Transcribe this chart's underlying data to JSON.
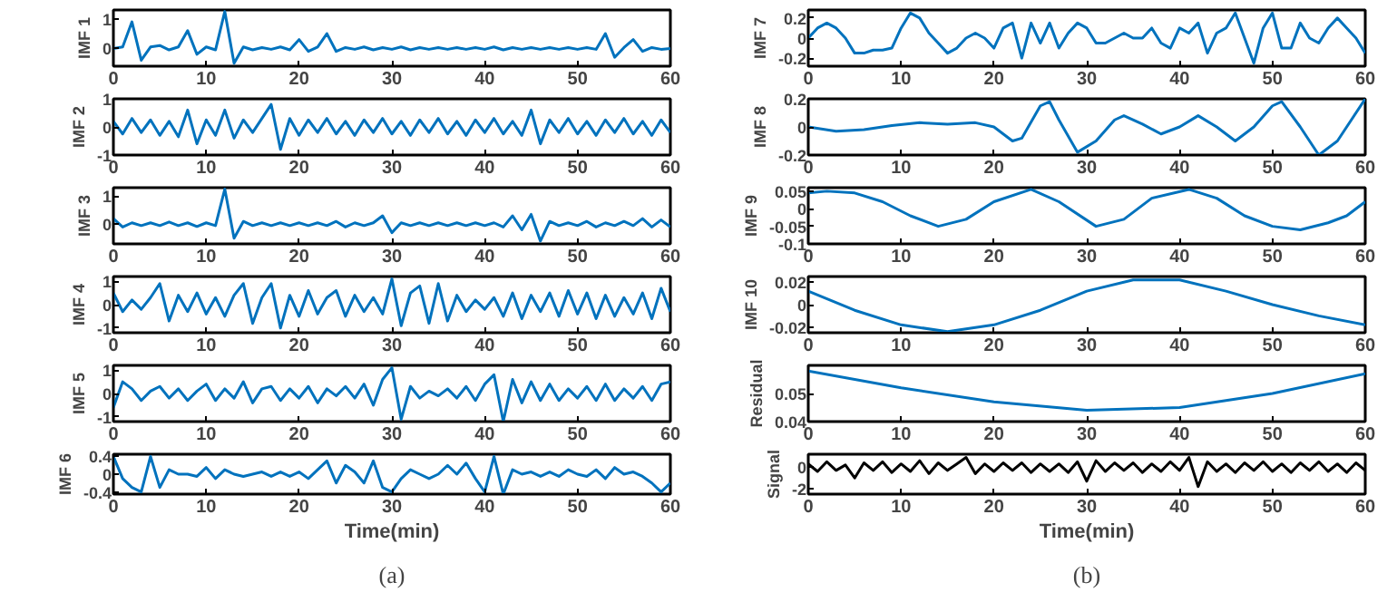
{
  "chart_data": [
    {
      "type": "line",
      "ylabel": "IMF 1",
      "xlim": [
        0,
        60
      ],
      "xticks": [
        0,
        10,
        20,
        30,
        40,
        50,
        60
      ],
      "ylim": [
        -0.6,
        1.3
      ],
      "yticks": [
        0,
        1
      ],
      "grid": false,
      "x": [
        0,
        1,
        2,
        3,
        4,
        5,
        6,
        7,
        8,
        9,
        10,
        11,
        12,
        13,
        14,
        15,
        16,
        17,
        18,
        19,
        20,
        21,
        22,
        23,
        24,
        25,
        26,
        27,
        28,
        29,
        30,
        31,
        32,
        33,
        34,
        35,
        36,
        37,
        38,
        39,
        40,
        41,
        42,
        43,
        44,
        45,
        46,
        47,
        48,
        49,
        50,
        51,
        52,
        53,
        54,
        55,
        56,
        57,
        58,
        59,
        60
      ],
      "series": [
        {
          "color": "#0072bd",
          "values": [
            0,
            0.05,
            0.9,
            -0.4,
            0.05,
            0.1,
            -0.05,
            0.05,
            0.6,
            -0.2,
            0.05,
            -0.05,
            1.25,
            -0.5,
            0.05,
            -0.05,
            0.03,
            -0.03,
            0.05,
            -0.05,
            0.3,
            -0.1,
            0.05,
            0.5,
            -0.1,
            0.03,
            -0.03,
            0.05,
            -0.05,
            0.03,
            -0.03,
            0.05,
            -0.05,
            0.03,
            -0.03,
            0.03,
            -0.03,
            0.03,
            -0.03,
            0.03,
            -0.03,
            0.05,
            -0.05,
            0.03,
            -0.03,
            0.03,
            -0.03,
            0.03,
            -0.03,
            0.03,
            -0.03,
            0.03,
            -0.03,
            0.5,
            -0.3,
            0.03,
            0.3,
            -0.1,
            0.03,
            -0.03,
            0
          ]
        }
      ]
    },
    {
      "type": "line",
      "ylabel": "IMF 2",
      "xlim": [
        0,
        60
      ],
      "xticks": [
        0,
        10,
        20,
        30,
        40,
        50,
        60
      ],
      "ylim": [
        -1,
        1
      ],
      "yticks": [
        -1,
        0,
        1
      ],
      "grid": false,
      "x": [
        0,
        1,
        2,
        3,
        4,
        5,
        6,
        7,
        8,
        9,
        10,
        11,
        12,
        13,
        14,
        15,
        16,
        17,
        18,
        19,
        20,
        21,
        22,
        23,
        24,
        25,
        26,
        27,
        28,
        29,
        30,
        31,
        32,
        33,
        34,
        35,
        36,
        37,
        38,
        39,
        40,
        41,
        42,
        43,
        44,
        45,
        46,
        47,
        48,
        49,
        50,
        51,
        52,
        53,
        54,
        55,
        56,
        57,
        58,
        59,
        60
      ],
      "series": [
        {
          "color": "#0072bd",
          "values": [
            0.2,
            -0.25,
            0.3,
            -0.2,
            0.25,
            -0.3,
            0.2,
            -0.35,
            0.6,
            -0.6,
            0.25,
            -0.3,
            0.6,
            -0.4,
            0.25,
            -0.2,
            0.3,
            0.8,
            -0.8,
            0.3,
            -0.3,
            0.25,
            -0.2,
            0.3,
            -0.25,
            0.2,
            -0.3,
            0.25,
            -0.2,
            0.3,
            -0.25,
            0.2,
            -0.3,
            0.25,
            -0.2,
            0.3,
            -0.25,
            0.2,
            -0.3,
            0.25,
            -0.2,
            0.3,
            -0.25,
            0.2,
            -0.3,
            0.6,
            -0.6,
            0.25,
            -0.2,
            0.3,
            -0.25,
            0.2,
            -0.3,
            0.25,
            -0.2,
            0.3,
            -0.25,
            0.2,
            -0.3,
            0.25,
            -0.2
          ]
        }
      ]
    },
    {
      "type": "line",
      "ylabel": "IMF 3",
      "xlim": [
        0,
        60
      ],
      "xticks": [
        0,
        10,
        20,
        30,
        40,
        50,
        60
      ],
      "ylim": [
        -0.7,
        1.3
      ],
      "yticks": [
        0,
        1
      ],
      "grid": false,
      "x": [
        0,
        1,
        2,
        3,
        4,
        5,
        6,
        7,
        8,
        9,
        10,
        11,
        12,
        13,
        14,
        15,
        16,
        17,
        18,
        19,
        20,
        21,
        22,
        23,
        24,
        25,
        26,
        27,
        28,
        29,
        30,
        31,
        32,
        33,
        34,
        35,
        36,
        37,
        38,
        39,
        40,
        41,
        42,
        43,
        44,
        45,
        46,
        47,
        48,
        49,
        50,
        51,
        52,
        53,
        54,
        55,
        56,
        57,
        58,
        59,
        60
      ],
      "series": [
        {
          "color": "#0072bd",
          "values": [
            0.2,
            -0.1,
            0.05,
            -0.05,
            0.05,
            -0.05,
            0.08,
            -0.05,
            0.05,
            -0.08,
            0.05,
            -0.05,
            1.25,
            -0.5,
            0.1,
            -0.05,
            0.05,
            -0.05,
            0.05,
            -0.05,
            0.05,
            -0.05,
            0.05,
            -0.05,
            0.1,
            -0.1,
            0.05,
            -0.05,
            0.05,
            0.3,
            -0.3,
            0.05,
            -0.05,
            0.05,
            -0.05,
            0.05,
            -0.05,
            0.05,
            -0.05,
            0.05,
            -0.05,
            0.05,
            -0.1,
            0.3,
            -0.2,
            0.35,
            -0.6,
            0.1,
            -0.05,
            0.05,
            -0.05,
            0.1,
            -0.1,
            0.05,
            -0.05,
            0.1,
            -0.05,
            0.2,
            -0.1,
            0.15,
            -0.1
          ]
        }
      ]
    },
    {
      "type": "line",
      "ylabel": "IMF 4",
      "xlim": [
        0,
        60
      ],
      "xticks": [
        0,
        10,
        20,
        30,
        40,
        50,
        60
      ],
      "ylim": [
        -1.2,
        1.2
      ],
      "yticks": [
        -1,
        0,
        1
      ],
      "grid": false,
      "x": [
        0,
        1,
        2,
        3,
        4,
        5,
        6,
        7,
        8,
        9,
        10,
        11,
        12,
        13,
        14,
        15,
        16,
        17,
        18,
        19,
        20,
        21,
        22,
        23,
        24,
        25,
        26,
        27,
        28,
        29,
        30,
        31,
        32,
        33,
        34,
        35,
        36,
        37,
        38,
        39,
        40,
        41,
        42,
        43,
        44,
        45,
        46,
        47,
        48,
        49,
        50,
        51,
        52,
        53,
        54,
        55,
        56,
        57,
        58,
        59,
        60
      ],
      "series": [
        {
          "color": "#0072bd",
          "values": [
            0.5,
            -0.3,
            0.2,
            -0.2,
            0.3,
            0.9,
            -0.7,
            0.4,
            -0.3,
            0.5,
            -0.4,
            0.3,
            -0.5,
            0.4,
            0.9,
            -0.8,
            0.3,
            0.9,
            -1,
            0.4,
            -0.5,
            0.6,
            -0.4,
            0.3,
            0.6,
            -0.5,
            0.4,
            -0.3,
            0.3,
            -0.4,
            1.1,
            -0.9,
            0.5,
            0.8,
            -0.8,
            0.9,
            -0.7,
            0.4,
            -0.3,
            0.2,
            -0.2,
            0.3,
            -0.5,
            0.5,
            -0.6,
            0.4,
            -0.3,
            0.5,
            -0.5,
            0.6,
            -0.4,
            0.5,
            -0.6,
            0.4,
            -0.5,
            0.3,
            -0.4,
            0.5,
            -0.6,
            0.7,
            -0.3
          ]
        }
      ]
    },
    {
      "type": "line",
      "ylabel": "IMF 5",
      "xlim": [
        0,
        60
      ],
      "xticks": [
        0,
        10,
        20,
        30,
        40,
        50,
        60
      ],
      "ylim": [
        -1.2,
        1.2
      ],
      "yticks": [
        -1,
        0,
        1
      ],
      "grid": false,
      "x": [
        0,
        1,
        2,
        3,
        4,
        5,
        6,
        7,
        8,
        9,
        10,
        11,
        12,
        13,
        14,
        15,
        16,
        17,
        18,
        19,
        20,
        21,
        22,
        23,
        24,
        25,
        26,
        27,
        28,
        29,
        30,
        31,
        32,
        33,
        34,
        35,
        36,
        37,
        38,
        39,
        40,
        41,
        42,
        43,
        44,
        45,
        46,
        47,
        48,
        49,
        50,
        51,
        52,
        53,
        54,
        55,
        56,
        57,
        58,
        59,
        60
      ],
      "series": [
        {
          "color": "#0072bd",
          "values": [
            -0.6,
            0.5,
            0.2,
            -0.3,
            0.1,
            0.3,
            -0.2,
            0.2,
            -0.3,
            0.1,
            0.4,
            -0.3,
            0.2,
            -0.2,
            0.5,
            -0.4,
            0.2,
            0.3,
            -0.3,
            0.2,
            -0.2,
            0.3,
            -0.4,
            0.2,
            -0.1,
            0.3,
            -0.2,
            0.4,
            -0.5,
            0.6,
            1.1,
            -1.1,
            0.3,
            -0.2,
            0.1,
            -0.1,
            0.2,
            -0.2,
            0.3,
            -0.3,
            0.4,
            0.8,
            -1.2,
            0.6,
            -0.4,
            0.5,
            -0.3,
            0.4,
            -0.3,
            0.2,
            -0.2,
            0.3,
            -0.3,
            0.4,
            -0.3,
            0.2,
            -0.2,
            0.3,
            -0.3,
            0.4,
            0.5
          ]
        }
      ]
    },
    {
      "type": "line",
      "ylabel": "IMF 6",
      "xlabel": "Time(min)",
      "annotations": [
        "(a)"
      ],
      "xlim": [
        0,
        60
      ],
      "xticks": [
        0,
        10,
        20,
        30,
        40,
        50,
        60
      ],
      "ylim": [
        -0.45,
        0.45
      ],
      "yticks": [
        -0.4,
        0,
        0.4
      ],
      "grid": false,
      "x": [
        0,
        1,
        2,
        3,
        4,
        5,
        6,
        7,
        8,
        9,
        10,
        11,
        12,
        13,
        14,
        15,
        16,
        17,
        18,
        19,
        20,
        21,
        22,
        23,
        24,
        25,
        26,
        27,
        28,
        29,
        30,
        31,
        32,
        33,
        34,
        35,
        36,
        37,
        38,
        39,
        40,
        41,
        42,
        43,
        44,
        45,
        46,
        47,
        48,
        49,
        50,
        51,
        52,
        53,
        54,
        55,
        56,
        57,
        58,
        59,
        60
      ],
      "series": [
        {
          "color": "#0072bd",
          "values": [
            0.4,
            -0.1,
            -0.3,
            -0.4,
            0.4,
            -0.3,
            0.1,
            0,
            0,
            -0.05,
            0.15,
            -0.1,
            0.1,
            0,
            -0.05,
            0,
            0.05,
            -0.05,
            0.05,
            -0.05,
            0.05,
            -0.1,
            0.1,
            0.3,
            -0.2,
            0.2,
            0.05,
            -0.2,
            0.3,
            -0.3,
            -0.4,
            -0.1,
            0.1,
            0,
            -0.1,
            0,
            0.2,
            0,
            0.25,
            -0.1,
            -0.4,
            0.4,
            -0.45,
            0.1,
            0,
            0.05,
            -0.05,
            0.05,
            -0.05,
            0.1,
            0,
            -0.05,
            0.1,
            -0.1,
            0.15,
            0,
            0.05,
            -0.05,
            -0.2,
            -0.4,
            -0.2
          ]
        }
      ]
    },
    {
      "type": "line",
      "ylabel": "IMF 7",
      "xlim": [
        0,
        60
      ],
      "xticks": [
        0,
        10,
        20,
        30,
        40,
        50,
        60
      ],
      "ylim": [
        -0.28,
        0.28
      ],
      "yticks": [
        -0.2,
        0,
        0.2
      ],
      "grid": false,
      "x": [
        0,
        1,
        2,
        3,
        4,
        5,
        6,
        7,
        8,
        9,
        10,
        11,
        12,
        13,
        14,
        15,
        16,
        17,
        18,
        19,
        20,
        21,
        22,
        23,
        24,
        25,
        26,
        27,
        28,
        29,
        30,
        31,
        32,
        33,
        34,
        35,
        36,
        37,
        38,
        39,
        40,
        41,
        42,
        43,
        44,
        45,
        46,
        47,
        48,
        49,
        50,
        51,
        52,
        53,
        54,
        55,
        56,
        57,
        58,
        59,
        60
      ],
      "series": [
        {
          "color": "#0072bd",
          "values": [
            0,
            0.1,
            0.15,
            0.1,
            0,
            -0.15,
            -0.15,
            -0.12,
            -0.12,
            -0.1,
            0.1,
            0.25,
            0.2,
            0.05,
            -0.05,
            -0.15,
            -0.1,
            0,
            0.05,
            0,
            -0.1,
            0.1,
            0.15,
            -0.2,
            0.15,
            -0.05,
            0.15,
            -0.1,
            0.05,
            0.15,
            0.1,
            -0.05,
            -0.05,
            0,
            0.05,
            0,
            0,
            0.1,
            -0.05,
            -0.1,
            0.1,
            0.05,
            0.15,
            -0.15,
            0.05,
            0.1,
            0.25,
            0,
            -0.25,
            0.1,
            0.25,
            -0.1,
            -0.1,
            0.15,
            0,
            -0.05,
            0.1,
            0.2,
            0.1,
            0,
            -0.15
          ]
        }
      ]
    },
    {
      "type": "line",
      "ylabel": "IMF 8",
      "xlim": [
        0,
        60
      ],
      "xticks": [
        0,
        10,
        20,
        30,
        40,
        50,
        60
      ],
      "ylim": [
        -0.2,
        0.2
      ],
      "yticks": [
        -0.2,
        0,
        0.2
      ],
      "grid": false,
      "x": [
        0,
        3,
        6,
        9,
        12,
        15,
        18,
        20,
        22,
        23,
        25,
        26,
        27,
        29,
        31,
        33,
        34,
        36,
        38,
        40,
        42,
        44,
        46,
        48,
        50,
        51,
        53,
        55,
        57,
        60
      ],
      "series": [
        {
          "color": "#0072bd",
          "values": [
            0,
            -0.03,
            -0.02,
            0.01,
            0.03,
            0.02,
            0.03,
            0,
            -0.1,
            -0.08,
            0.15,
            0.18,
            0.05,
            -0.18,
            -0.1,
            0.05,
            0.08,
            0.02,
            -0.05,
            0,
            0.08,
            0,
            -0.1,
            0,
            0.15,
            0.18,
            0,
            -0.2,
            -0.1,
            0.2
          ]
        }
      ]
    },
    {
      "type": "line",
      "ylabel": "IMF 9",
      "xlim": [
        0,
        60
      ],
      "xticks": [
        0,
        10,
        20,
        30,
        40,
        50,
        60
      ],
      "ylim": [
        -0.1,
        0.06
      ],
      "yticks": [
        -0.1,
        -0.05,
        0,
        0.05
      ],
      "grid": false,
      "x": [
        0,
        2,
        5,
        8,
        11,
        14,
        17,
        20,
        24,
        27,
        31,
        34,
        37,
        41,
        44,
        47,
        50,
        53,
        56,
        58,
        60
      ],
      "series": [
        {
          "color": "#0072bd",
          "values": [
            0.045,
            0.05,
            0.045,
            0.02,
            -0.02,
            -0.05,
            -0.03,
            0.02,
            0.055,
            0.02,
            -0.05,
            -0.03,
            0.03,
            0.055,
            0.03,
            -0.02,
            -0.05,
            -0.06,
            -0.04,
            -0.02,
            0.02
          ]
        }
      ]
    },
    {
      "type": "line",
      "ylabel": "IMF 10",
      "xlim": [
        0,
        60
      ],
      "xticks": [
        0,
        10,
        20,
        30,
        40,
        50,
        60
      ],
      "ylim": [
        -0.025,
        0.025
      ],
      "yticks": [
        -0.02,
        0,
        0.02
      ],
      "grid": false,
      "x": [
        0,
        5,
        10,
        15,
        20,
        25,
        30,
        35,
        40,
        45,
        50,
        55,
        60
      ],
      "series": [
        {
          "color": "#0072bd",
          "values": [
            0.012,
            -0.005,
            -0.018,
            -0.024,
            -0.018,
            -0.005,
            0.012,
            0.022,
            0.022,
            0.012,
            0,
            -0.01,
            -0.018
          ]
        }
      ]
    },
    {
      "type": "line",
      "ylabel": "Residual",
      "xlim": [
        0,
        60
      ],
      "xticks": [
        0,
        10,
        20,
        30,
        40,
        50,
        60
      ],
      "ylim": [
        0.04,
        0.06
      ],
      "yticks": [
        0.04,
        0.05
      ],
      "grid": false,
      "x": [
        0,
        10,
        20,
        30,
        40,
        50,
        60
      ],
      "series": [
        {
          "color": "#0072bd",
          "values": [
            0.058,
            0.052,
            0.047,
            0.044,
            0.045,
            0.05,
            0.057
          ]
        }
      ]
    },
    {
      "type": "line",
      "ylabel": "Signal",
      "xlabel": "Time(min)",
      "annotations": [
        "(b)"
      ],
      "xlim": [
        0,
        60
      ],
      "xticks": [
        0,
        10,
        20,
        30,
        40,
        50,
        60
      ],
      "ylim": [
        -2.5,
        1.2
      ],
      "yticks": [
        -2,
        0
      ],
      "grid": false,
      "x": [
        0,
        1,
        2,
        3,
        4,
        5,
        6,
        7,
        8,
        9,
        10,
        11,
        12,
        13,
        14,
        15,
        16,
        17,
        18,
        19,
        20,
        21,
        22,
        23,
        24,
        25,
        26,
        27,
        28,
        29,
        30,
        31,
        32,
        33,
        34,
        35,
        36,
        37,
        38,
        39,
        40,
        41,
        42,
        43,
        44,
        45,
        46,
        47,
        48,
        49,
        50,
        51,
        52,
        53,
        54,
        55,
        56,
        57,
        58,
        59,
        60
      ],
      "series": [
        {
          "color": "#000000",
          "values": [
            0.3,
            -0.4,
            0.5,
            -0.3,
            0.2,
            -1,
            0.4,
            -0.3,
            0.5,
            -0.5,
            0.3,
            -0.4,
            0.6,
            -0.6,
            0.4,
            -0.3,
            0.3,
            0.9,
            -0.6,
            0.3,
            -0.4,
            0.4,
            -0.3,
            0.4,
            -0.5,
            0.3,
            -0.4,
            0.3,
            -0.5,
            0.5,
            -1.3,
            0.6,
            -0.4,
            0.4,
            -0.3,
            0.4,
            -0.5,
            0.3,
            -0.4,
            0.5,
            -0.3,
            0.9,
            -1.8,
            0.5,
            -0.4,
            0.3,
            -0.5,
            0.4,
            -0.3,
            0.5,
            -0.4,
            0.3,
            -0.5,
            0.4,
            -0.3,
            0.5,
            -0.4,
            0.3,
            -0.5,
            0.4,
            -0.3
          ]
        }
      ]
    }
  ]
}
